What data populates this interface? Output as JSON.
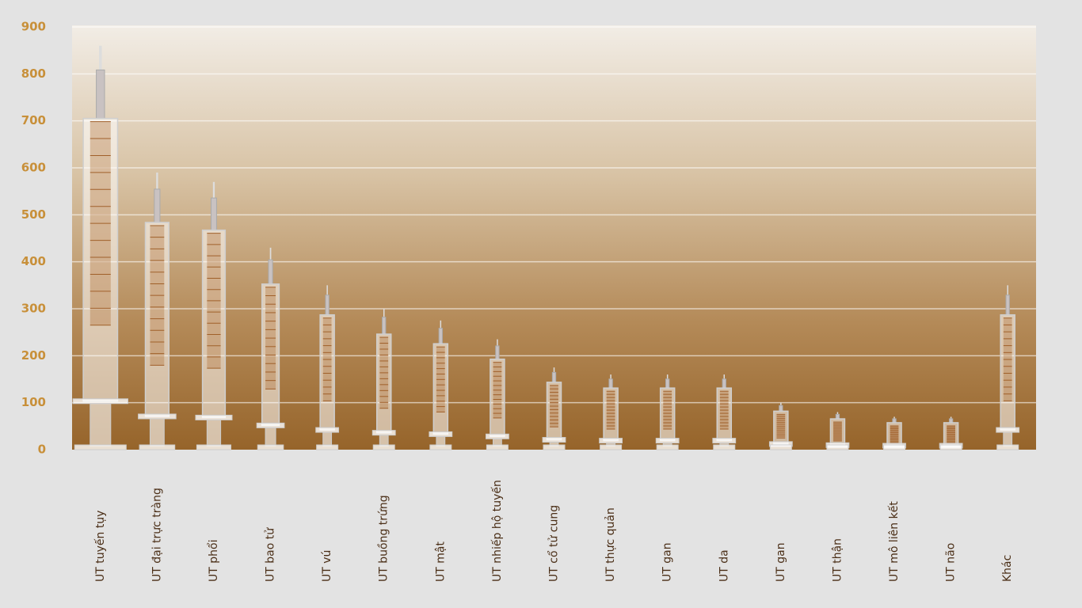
{
  "chart_data": {
    "type": "pictograph",
    "categories": [
      "UT tuyến tụy",
      "UT đại trực tràng",
      "UT phổi",
      "UT bao tử",
      "UT vú",
      "UT buồng trứng",
      "UT mật",
      "UT nhiếp hộ tuyến",
      "UT cổ tử cung",
      "UT thực quản",
      "UT gan",
      "UT da",
      "UT gan",
      "UT thận",
      "UT mô liên kết",
      "UT não",
      "Khác"
    ],
    "values": [
      860,
      590,
      570,
      430,
      350,
      300,
      275,
      235,
      175,
      160,
      160,
      160,
      100,
      80,
      70,
      70,
      350
    ],
    "ylim": [
      0,
      900
    ],
    "yticks": [
      0,
      100,
      200,
      300,
      400,
      500,
      600,
      700,
      800,
      900
    ],
    "grid": true
  }
}
